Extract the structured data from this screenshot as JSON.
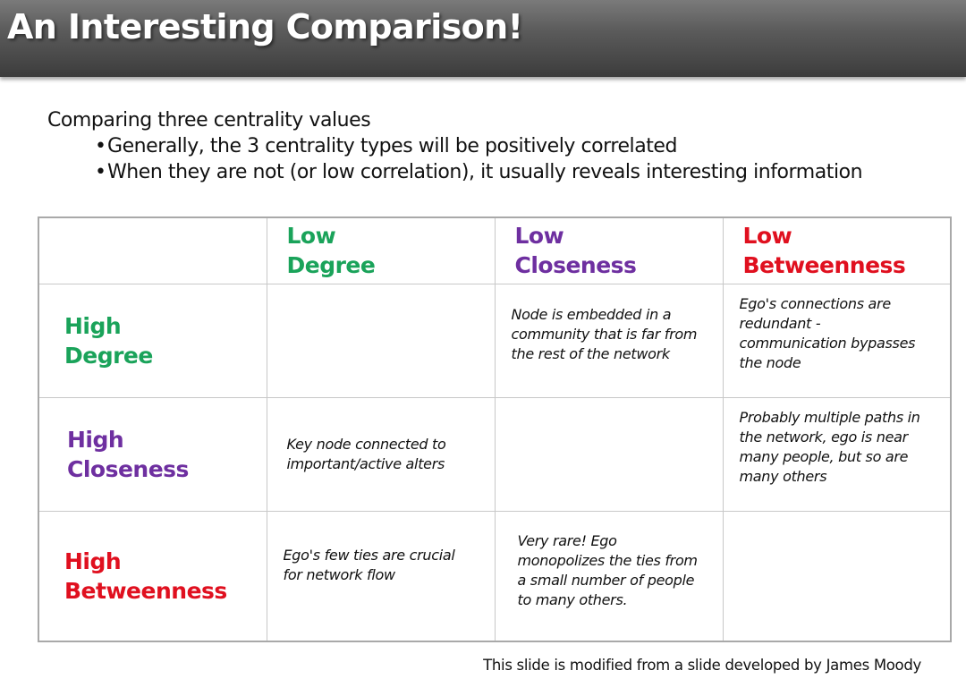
{
  "title": "An Interesting Comparison!",
  "intro": "Comparing three centrality values",
  "bullets": [
    "Generally, the 3 centrality types will be positively correlated",
    "When they are not (or low correlation), it usually reveals interesting information"
  ],
  "bullet_glyph": "•",
  "colors": {
    "degree": "#1aa35a",
    "closeness": "#6e2fa0",
    "betweenness": "#e0101f"
  },
  "table": {
    "columns": [
      {
        "line1": "Low",
        "line2": "Degree"
      },
      {
        "line1": "Low",
        "line2": "Closeness"
      },
      {
        "line1": "Low",
        "line2": "Betweenness"
      }
    ],
    "rows": [
      {
        "line1": "High",
        "line2": "Degree",
        "cells": [
          "",
          "Node is embedded in a\ncommunity that is far from\nthe rest of the network",
          "Ego's connections are\nredundant -\ncommunication bypasses\nthe node"
        ]
      },
      {
        "line1": "High",
        "line2": "Closeness",
        "cells": [
          "Key node connected to\nimportant/active alters",
          "",
          "Probably multiple paths in\nthe network, ego is near\nmany people, but so are\nmany others"
        ]
      },
      {
        "line1": "High",
        "line2": "Betweenness",
        "cells": [
          "Ego's few ties are crucial\nfor network flow",
          "Very rare!  Ego\nmonopolizes the ties from\na small number of people\nto many others.",
          ""
        ]
      }
    ]
  },
  "footer": "This slide is modified from a slide developed by James Moody"
}
